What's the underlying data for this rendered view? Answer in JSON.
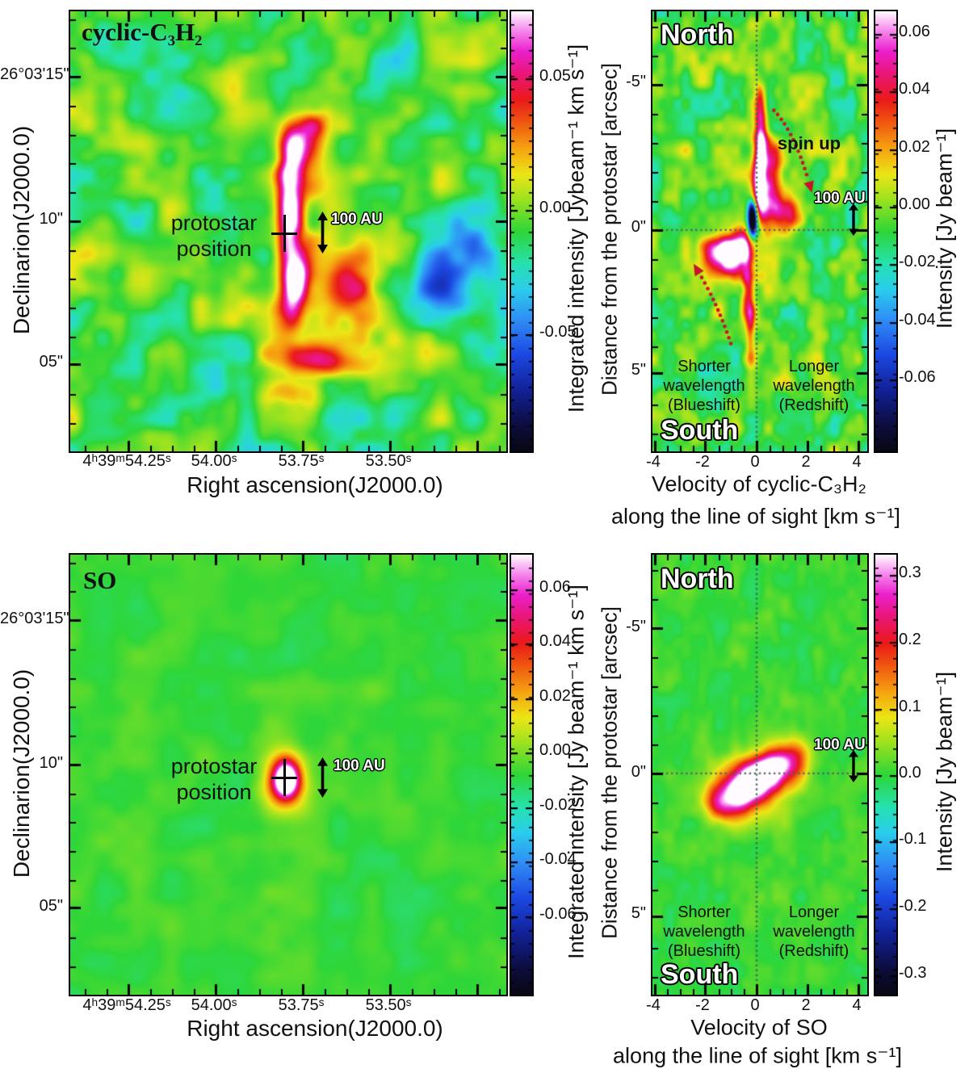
{
  "chart_data": [
    {
      "type": "heatmap",
      "id": "c3h2_integrated_intensity_map",
      "title": "cyclic-C₃H₂",
      "x_axis": {
        "label": "Right ascension(J2000.0)",
        "ticks": [
          "4ʰ39ᵐ54.25ˢ",
          "54.00ˢ",
          "53.75ˢ",
          "53.50ˢ"
        ],
        "approx_range": [
          "4h39m54.42s",
          "4h39m53.17s"
        ]
      },
      "y_axis": {
        "label": "Declinarion(J2000.0)",
        "ticks": [
          "26°03'15\"",
          "10\"",
          "05\""
        ],
        "approx_range": [
          "26°03'02\"",
          "26°03'17\""
        ]
      },
      "colorbar": {
        "label": "Integrated intensity [Jybeam⁻¹ km s⁻¹]",
        "tick_values": [
          0.05,
          0.0,
          -0.05
        ],
        "colormap": "rainbow: black-blue-cyan-green(0)-yellow-orange-red-magenta-white"
      },
      "annotations": [
        "protostar position (cross at ~4h39m53.87s, 26°03'09.5\")",
        "100 AU vertical scale arrow"
      ],
      "features": [
        "mottled green/yellow/cyan noise background near 0",
        "vertically elongated red ridge through the protostar with two magenta/white peaks (~0.05-0.07) just N and S of the cross",
        "red blob SE of protostar",
        "red arc S of ridge",
        "cyan-blue negative patch near E edge"
      ]
    },
    {
      "type": "heatmap",
      "id": "c3h2_position_velocity_diagram",
      "x_axis": {
        "label": "Velocity of cyclic-C₃H₂ along the line of sight [km s⁻¹]",
        "ticks": [
          -4,
          -2,
          0,
          2,
          4
        ]
      },
      "y_axis": {
        "label": "Distance from the protostar [arcsec]",
        "ticks": [
          "-5\"",
          "0\"",
          "5\""
        ],
        "north_up": true
      },
      "colorbar": {
        "label": "Intensity [Jy beam⁻¹]",
        "tick_values": [
          0.06,
          0.04,
          0.02,
          0.0,
          -0.02,
          -0.04,
          -0.06
        ]
      },
      "annotations": [
        "North (top)",
        "South (bottom)",
        "spin up with dotted red arrows",
        "100 AU scale arrow",
        "Shorter wavelength (Blueshift) at negative velocity",
        "Longer wavelength (Redshift) at positive velocity",
        "dotted crosshair at v=0, distance=0"
      ],
      "features": [
        "red/orange emission N of protostar near v≈0 to +0.5 km/s brightening toward center (magenta)",
        "compact dark-blue negative dip just N of distance 0 at v≈-0.2 km/s",
        "bright magenta/red blob S of protostar at v≈-1 to -1.5 km/s",
        "red tail extending to ~3\" S near v≈-0.5 km/s",
        "spin-up arrows curve toward larger |velocity| closer to the protostar"
      ]
    },
    {
      "type": "heatmap",
      "id": "so_integrated_intensity_map",
      "title": "SO",
      "x_axis": {
        "label": "Right ascension(J2000.0)",
        "ticks": [
          "4ʰ39ᵐ54.25ˢ",
          "54.00ˢ",
          "53.75ˢ",
          "53.50ˢ"
        ]
      },
      "y_axis": {
        "label": "Declinarion(J2000.0)",
        "ticks": [
          "26°03'15\"",
          "10\"",
          "05\""
        ]
      },
      "colorbar": {
        "label": "Integrated intensity [Jy beam⁻¹ km s⁻¹]",
        "tick_values": [
          0.06,
          0.04,
          0.02,
          0.0,
          -0.02,
          -0.04,
          -0.06
        ]
      },
      "annotations": [
        "protostar position cross",
        "100 AU vertical scale arrow"
      ],
      "features": [
        "nearly uniform green background",
        "single compact bright spot at the protostar: white core, magenta/red rings, yellow fringe"
      ]
    },
    {
      "type": "heatmap",
      "id": "so_position_velocity_diagram",
      "x_axis": {
        "label": "Velocity of SO along the line of sight [km s⁻¹]",
        "ticks": [
          -4,
          -2,
          0,
          2,
          4
        ]
      },
      "y_axis": {
        "label": "Distance from the protostar [arcsec]",
        "ticks": [
          "-5\"",
          "0\"",
          "5\""
        ],
        "north_up": true
      },
      "colorbar": {
        "label": "Intensity [Jy beam⁻¹]",
        "tick_values": [
          0.3,
          0.2,
          0.1,
          0.0,
          -0.1,
          -0.2,
          -0.3
        ]
      },
      "annotations": [
        "North (top)",
        "South (bottom)",
        "100 AU scale arrow",
        "Shorter wavelength (Blueshift)",
        "Longer wavelength (Redshift)",
        "dotted crosshair at v=0, distance=0"
      ],
      "features": [
        "smooth green background",
        "single diagonal magenta/white ridge centered on (v=0, distance=0) running from (≈-1.7 km/s, ≈0.7\" S) to (≈+1.8 km/s, ≈0.9\" N) with orange/yellow fringe"
      ]
    }
  ],
  "panels": {
    "c3h2_map": {
      "title": "cyclic-C₃H₂",
      "dec_label": "Declinarion(J2000.0)",
      "ra_label": "Right ascension(J2000.0)",
      "dec_ticks": [
        "26°03'15\"",
        "10\"",
        "05\""
      ],
      "ra_ticks": [
        "4ʰ39ᵐ54.25ˢ",
        "54.00ˢ",
        "53.75ˢ",
        "53.50ˢ"
      ],
      "protostar_line1": "protostar",
      "protostar_line2": "position",
      "scale_label": "100 AU",
      "colorbar_label": "Integrated intensity [Jybeam⁻¹ km s⁻¹]",
      "colorbar_ticks": [
        "0.05",
        "0.00",
        "-0.05"
      ]
    },
    "c3h2_pv": {
      "north": "North",
      "south": "South",
      "dist_ticks": [
        "-5\"",
        "0\"",
        "5\""
      ],
      "vel_ticks": [
        "-4",
        "-2",
        "0",
        "2",
        "4"
      ],
      "dist_label": "Distance from the protostar [arcsec]",
      "vel_label_1": "Velocity of cyclic-C₃H₂",
      "vel_label_2": "along the line of sight [km s⁻¹]",
      "spin_up": "spin up",
      "scale_label": "100 AU",
      "blueshift": [
        "Shorter",
        "wavelength",
        "(Blueshift)"
      ],
      "redshift": [
        "Longer",
        "wavelength",
        "(Redshift)"
      ],
      "colorbar_label": "Intensity [Jy beam⁻¹]",
      "colorbar_ticks": [
        "0.06",
        "0.04",
        "0.02",
        "0.00",
        "-0.02",
        "-0.04",
        "-0.06"
      ]
    },
    "so_map": {
      "title": "SO",
      "dec_label": "Declinarion(J2000.0)",
      "ra_label": "Right ascension(J2000.0)",
      "dec_ticks": [
        "26°03'15\"",
        "10\"",
        "05\""
      ],
      "ra_ticks": [
        "4ʰ39ᵐ54.25ˢ",
        "54.00ˢ",
        "53.75ˢ",
        "53.50ˢ"
      ],
      "protostar_line1": "protostar",
      "protostar_line2": "position",
      "scale_label": "100 AU",
      "colorbar_label": "Integrated intensity [Jy beam⁻¹ km s⁻¹]",
      "colorbar_ticks": [
        "0.06",
        "0.04",
        "0.02",
        "0.00",
        "-0.02",
        "-0.04",
        "-0.06"
      ]
    },
    "so_pv": {
      "north": "North",
      "south": "South",
      "dist_ticks": [
        "-5\"",
        "0\"",
        "5\""
      ],
      "vel_ticks": [
        "-4",
        "-2",
        "0",
        "2",
        "4"
      ],
      "dist_label": "Distance from the protostar [arcsec]",
      "vel_label_1": "Velocity of SO",
      "vel_label_2": "along the line of sight [km s⁻¹]",
      "scale_label": "100 AU",
      "blueshift": [
        "Shorter",
        "wavelength",
        "(Blueshift)"
      ],
      "redshift": [
        "Longer",
        "wavelength",
        "(Redshift)"
      ],
      "colorbar_label": "Intensity [Jy beam⁻¹]",
      "colorbar_ticks": [
        "0.3",
        "0.2",
        "0.1",
        "0.0",
        "-0.1",
        "-0.2",
        "-0.3"
      ]
    }
  }
}
